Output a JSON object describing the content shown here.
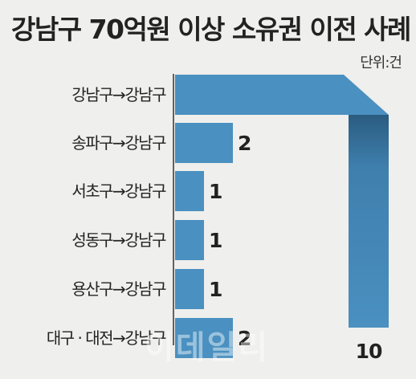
{
  "title": "강남구 70억원 이상 소유권 이전 사례",
  "unit": "단위:건",
  "watermark": "이데일리",
  "colors": {
    "bar": "#4a90c0",
    "bar_dark": "#2a5c80",
    "background": "#efefed"
  },
  "chart_data": {
    "type": "bar",
    "orientation": "horizontal",
    "title": "강남구 70억원 이상 소유권 이전 사례",
    "unit": "단위:건",
    "categories": [
      "강남구→강남구",
      "송파구→강남구",
      "서초구→강남구",
      "성동구→강남구",
      "용산구→강남구",
      "대구 · 대전→강남구"
    ],
    "values": [
      10,
      2,
      1,
      1,
      1,
      2
    ],
    "labels": [
      "10",
      "2",
      "1",
      "1",
      "1",
      "2"
    ],
    "grid": false,
    "note": "first bar bends downward with its value label at the bottom"
  }
}
